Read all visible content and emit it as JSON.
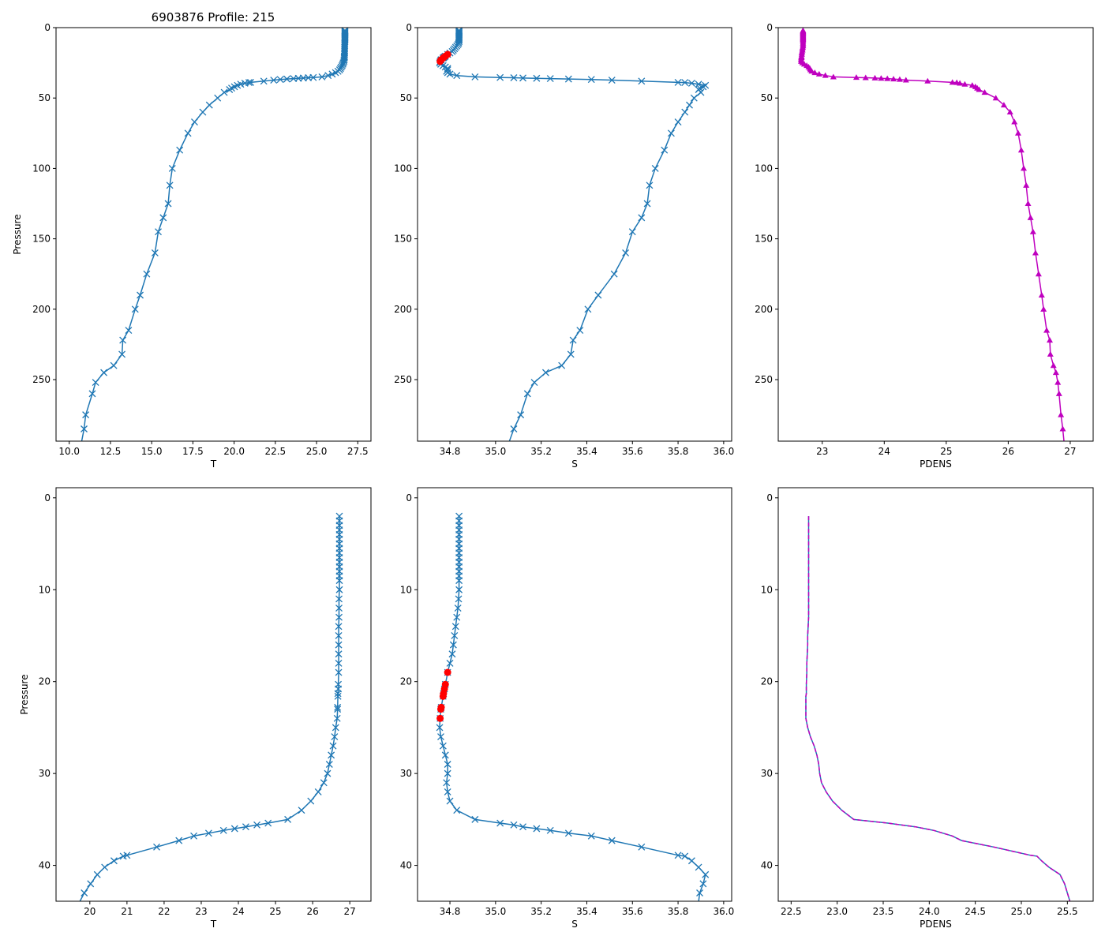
{
  "chart_data": {
    "type": "line",
    "title": "6903876 Profile: 215",
    "colors": {
      "line": "#1f77b4",
      "flag": "#ff0000",
      "pdens": "#bf00bf"
    },
    "profile": {
      "pressure": [
        2,
        2.5,
        3,
        3.5,
        4,
        4.5,
        5,
        5.5,
        6,
        6.5,
        7,
        7.5,
        8,
        8.5,
        9,
        10,
        11,
        12,
        13,
        14,
        15,
        16,
        17,
        18,
        19,
        20.3,
        20.8,
        21.3,
        21.6,
        22.8,
        23,
        24,
        25,
        26,
        27,
        28,
        29,
        30,
        31,
        32,
        33,
        34,
        35,
        35.4,
        35.6,
        35.8,
        36,
        36.2,
        36.5,
        36.8,
        37.3,
        38,
        38.9,
        39,
        39.5,
        40.2,
        41,
        42,
        43,
        44,
        46,
        50,
        55,
        60,
        67,
        75,
        87,
        100,
        112,
        125,
        135,
        145,
        160,
        175,
        190,
        200,
        215,
        222,
        232,
        240,
        245,
        252,
        260,
        275,
        285,
        294
      ],
      "T": [
        26.72,
        26.72,
        26.72,
        26.72,
        26.72,
        26.72,
        26.72,
        26.72,
        26.72,
        26.72,
        26.72,
        26.72,
        26.72,
        26.72,
        26.72,
        26.72,
        26.71,
        26.71,
        26.71,
        26.7,
        26.7,
        26.7,
        26.7,
        26.7,
        26.7,
        26.69,
        26.69,
        26.68,
        26.68,
        26.67,
        26.67,
        26.66,
        26.62,
        26.59,
        26.55,
        26.5,
        26.45,
        26.4,
        26.3,
        26.15,
        25.95,
        25.7,
        25.33,
        24.8,
        24.5,
        24.2,
        23.9,
        23.6,
        23.2,
        22.8,
        22.4,
        21.8,
        21.0,
        20.9,
        20.65,
        20.4,
        20.2,
        20.02,
        19.85,
        19.72,
        19.4,
        19.0,
        18.5,
        18.1,
        17.6,
        17.2,
        16.7,
        16.25,
        16.1,
        16.0,
        15.7,
        15.4,
        15.2,
        14.7,
        14.3,
        14.0,
        13.6,
        13.25,
        13.2,
        12.7,
        12.1,
        11.6,
        11.4,
        11.0,
        10.9,
        10.75
      ],
      "S": [
        34.84,
        34.84,
        34.84,
        34.84,
        34.84,
        34.84,
        34.84,
        34.84,
        34.84,
        34.84,
        34.84,
        34.84,
        34.84,
        34.84,
        34.84,
        34.84,
        34.838,
        34.835,
        34.83,
        34.825,
        34.82,
        34.815,
        34.81,
        34.8,
        34.79,
        34.78,
        34.776,
        34.772,
        34.77,
        34.762,
        34.76,
        34.757,
        34.755,
        34.76,
        34.77,
        34.78,
        34.79,
        34.79,
        34.785,
        34.79,
        34.8,
        34.83,
        34.91,
        35.02,
        35.08,
        35.12,
        35.18,
        35.24,
        35.32,
        35.42,
        35.51,
        35.64,
        35.8,
        35.83,
        35.86,
        35.89,
        35.92,
        35.91,
        35.895,
        35.89,
        35.9,
        35.87,
        35.85,
        35.83,
        35.8,
        35.77,
        35.74,
        35.7,
        35.675,
        35.665,
        35.64,
        35.6,
        35.57,
        35.52,
        35.45,
        35.405,
        35.37,
        35.34,
        35.33,
        35.29,
        35.22,
        35.17,
        35.14,
        35.11,
        35.08,
        35.06
      ],
      "PDENS": [
        22.69,
        22.69,
        22.69,
        22.69,
        22.69,
        22.69,
        22.69,
        22.69,
        22.69,
        22.69,
        22.69,
        22.69,
        22.69,
        22.69,
        22.69,
        22.69,
        22.69,
        22.69,
        22.69,
        22.685,
        22.68,
        22.68,
        22.675,
        22.67,
        22.67,
        22.665,
        22.665,
        22.665,
        22.66,
        22.66,
        22.66,
        22.66,
        22.68,
        22.71,
        22.75,
        22.78,
        22.8,
        22.81,
        22.83,
        22.88,
        22.95,
        23.05,
        23.18,
        23.55,
        23.7,
        23.85,
        23.95,
        24.05,
        24.15,
        24.25,
        24.35,
        24.7,
        25.1,
        25.17,
        25.22,
        25.3,
        25.42,
        25.47,
        25.5,
        25.53,
        25.62,
        25.8,
        25.93,
        26.03,
        26.1,
        26.16,
        26.21,
        26.25,
        26.29,
        26.32,
        26.36,
        26.4,
        26.44,
        26.49,
        26.54,
        26.57,
        26.62,
        26.67,
        26.68,
        26.73,
        26.77,
        26.8,
        26.82,
        26.85,
        26.88,
        26.9
      ],
      "S_flagged_pressures": [
        19,
        20.3,
        20.8,
        21.3,
        21.6,
        22.8,
        23,
        24
      ]
    },
    "panels": [
      {
        "var": "T",
        "xlabel": "T",
        "ylabel": "Pressure",
        "xlim": [
          9.2,
          28.3
        ],
        "ylim": [
          293.7,
          0
        ],
        "xticks": [
          "10.0",
          "12.5",
          "15.0",
          "17.5",
          "20.0",
          "22.5",
          "25.0",
          "27.5"
        ],
        "yticks": [
          "0",
          "50",
          "100",
          "150",
          "200",
          "250"
        ],
        "style": "x"
      },
      {
        "var": "S",
        "xlabel": "S",
        "ylabel": "",
        "xlim": [
          34.658,
          36.035
        ],
        "ylim": [
          293.7,
          0
        ],
        "xticks": [
          "34.8",
          "35.0",
          "35.2",
          "35.4",
          "35.6",
          "35.8",
          "36.0"
        ],
        "yticks": [
          "0",
          "50",
          "100",
          "150",
          "200",
          "250"
        ],
        "style": "x-flag"
      },
      {
        "var": "PDENS",
        "xlabel": "PDENS",
        "ylabel": "",
        "xlim": [
          22.29,
          27.37
        ],
        "ylim": [
          293.7,
          0
        ],
        "xticks": [
          "23",
          "24",
          "25",
          "26",
          "27"
        ],
        "yticks": [
          "0",
          "50",
          "100",
          "150",
          "200",
          "250"
        ],
        "style": "triangle"
      },
      {
        "var": "T",
        "xlabel": "T",
        "ylabel": "Pressure",
        "xlim": [
          19.09,
          27.57
        ],
        "ylim": [
          43.9,
          -1.1
        ],
        "xticks": [
          "20",
          "21",
          "22",
          "23",
          "24",
          "25",
          "26",
          "27"
        ],
        "yticks": [
          "0",
          "10",
          "20",
          "30",
          "40"
        ],
        "style": "x"
      },
      {
        "var": "S",
        "xlabel": "S",
        "ylabel": "",
        "xlim": [
          34.658,
          36.035
        ],
        "ylim": [
          43.9,
          -1.1
        ],
        "xticks": [
          "34.8",
          "35.0",
          "35.2",
          "35.4",
          "35.6",
          "35.8",
          "36.0"
        ],
        "yticks": [
          "0",
          "10",
          "20",
          "30",
          "40"
        ],
        "style": "x-flag"
      },
      {
        "var": "PDENS",
        "xlabel": "PDENS",
        "ylabel": "",
        "xlim": [
          22.36,
          25.78
        ],
        "ylim": [
          43.9,
          -1.1
        ],
        "xticks": [
          "22.5",
          "23.0",
          "23.5",
          "24.0",
          "24.5",
          "25.0",
          "25.5"
        ],
        "yticks": [
          "0",
          "10",
          "20",
          "30",
          "40"
        ],
        "style": "dashed"
      }
    ]
  }
}
